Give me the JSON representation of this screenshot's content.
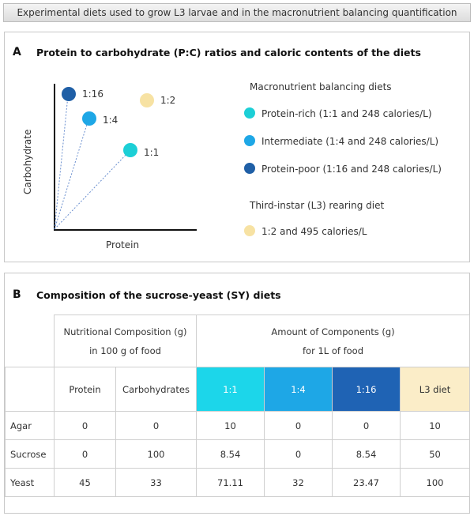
{
  "header": "Experimental diets used to grow L3 larvae and in the macronutrient balancing quantification",
  "panel_a": {
    "letter": "A",
    "title": "Protein to carbohydrate (P:C) ratios and caloric contents of the diets",
    "axis_y": "Carbohydrate",
    "axis_x": "Protein",
    "points": [
      {
        "label": "1:16",
        "protein": 1,
        "carbohydrate": 16,
        "color": "#1f5fa6"
      },
      {
        "label": "1:4",
        "protein": 1,
        "carbohydrate": 4,
        "color": "#1ea7e6"
      },
      {
        "label": "1:1",
        "protein": 1,
        "carbohydrate": 1,
        "color": "#1ccfd6"
      },
      {
        "label": "1:2",
        "protein": 1,
        "carbohydrate": 2,
        "color": "#f7e2a3"
      }
    ],
    "legend_heading_1": "Macronutrient balancing diets",
    "legend_items": [
      {
        "text": "Protein-rich (1:1 and 248 calories/L)",
        "color": "#1ccfd6"
      },
      {
        "text": "Intermediate (1:4 and 248 calories/L)",
        "color": "#1ea7e6"
      },
      {
        "text": "Protein-poor (1:16 and 248 calories/L)",
        "color": "#1f5fa6"
      }
    ],
    "legend_heading_2": "Third-instar (L3) rearing diet",
    "legend_item_l3": {
      "text": "1:2 and 495 calories/L",
      "color": "#f7e2a3"
    }
  },
  "panel_b": {
    "letter": "B",
    "title": "Composition of the sucrose-yeast (SY) diets",
    "group1_line1": "Nutritional Composition (g)",
    "group1_line2": "in 100 g of food",
    "group2_line1": "Amount of Components (g)",
    "group2_line2": "for 1L of food",
    "columns": [
      "Protein",
      "Carbohydrates",
      "1:1",
      "1:4",
      "1:16",
      "L3 diet"
    ],
    "column_colors": {
      "c1_1": "#1cd6ea",
      "c1_4": "#1ea7e6",
      "c1_16": "#1f63b4",
      "l3": "#fbedc8"
    },
    "rows": [
      {
        "name": "Agar",
        "values": [
          "0",
          "0",
          "10",
          "0",
          "0",
          "10"
        ]
      },
      {
        "name": "Sucrose",
        "values": [
          "0",
          "100",
          "8.54",
          "0",
          "8.54",
          "50"
        ]
      },
      {
        "name": "Yeast",
        "values": [
          "45",
          "33",
          "71.11",
          "32",
          "23.47",
          "100"
        ]
      }
    ]
  }
}
